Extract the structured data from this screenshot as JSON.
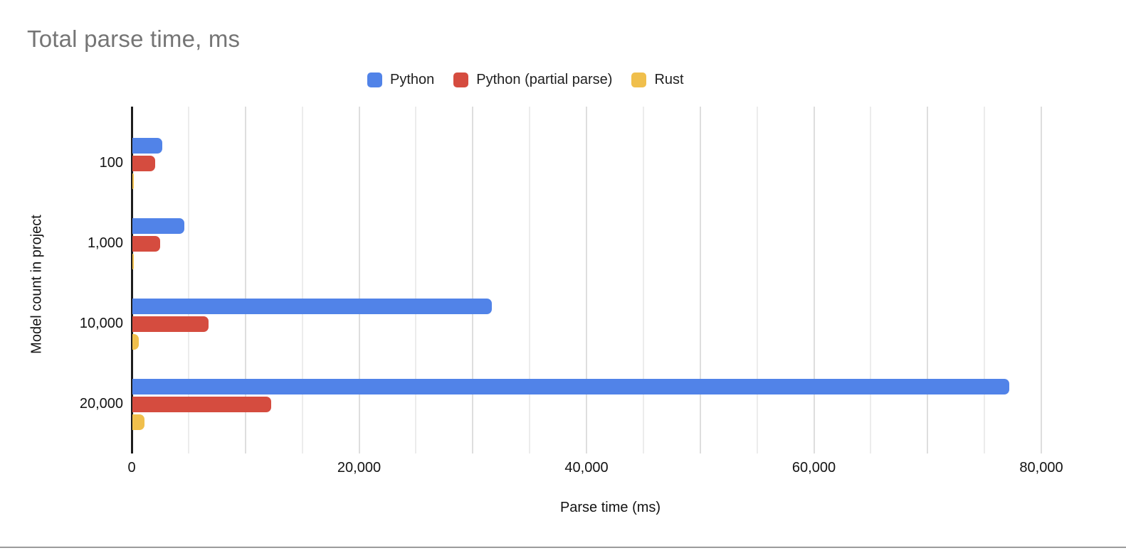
{
  "page": {
    "background": "#ffffff",
    "bottom_edge_color": "#9b9b9b"
  },
  "chart_data": {
    "type": "bar",
    "orientation": "horizontal",
    "title": "Total parse time, ms",
    "title_color": "#757575",
    "xlabel": "Parse time (ms)",
    "ylabel": "Model count in project",
    "categories": [
      "100",
      "1,000",
      "10,000",
      "20,000"
    ],
    "series": [
      {
        "name": "Python",
        "color": "#5183e8",
        "values": [
          2600,
          4550,
          31600,
          77100
        ]
      },
      {
        "name": "Python (partial parse)",
        "color": "#d54c3f",
        "values": [
          2000,
          2450,
          6700,
          12200
        ]
      },
      {
        "name": "Rust",
        "color": "#f0bf4c",
        "values": [
          90,
          95,
          580,
          1060
        ]
      }
    ],
    "x_ticks": [
      {
        "value": 0,
        "label": "0"
      },
      {
        "value": 20000,
        "label": "20,000"
      },
      {
        "value": 40000,
        "label": "40,000"
      },
      {
        "value": 60000,
        "label": "60,000"
      },
      {
        "value": 80000,
        "label": "80,000"
      }
    ],
    "xlim": [
      0,
      84000
    ],
    "grid": {
      "minor_interval": 5000,
      "major_interval": 10000,
      "minor_color": "#ececec",
      "major_color": "#dedede"
    },
    "legend_position": "top",
    "axis_color": "#1d1d1d"
  }
}
